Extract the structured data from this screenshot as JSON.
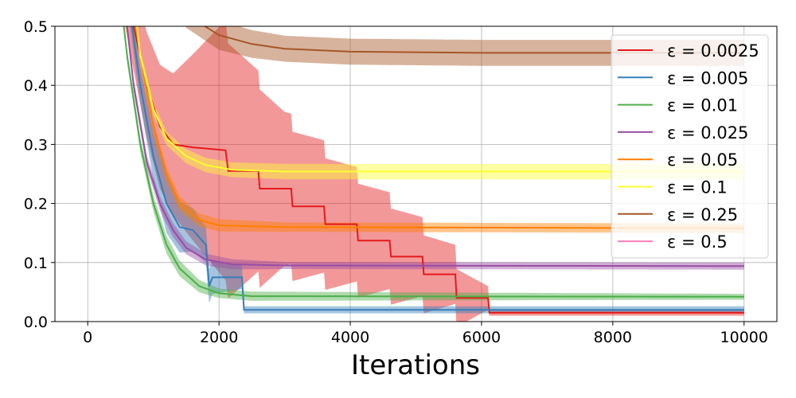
{
  "chart_data": {
    "type": "line",
    "title": "",
    "xlabel": "Iterations",
    "ylabel": "",
    "xlim": [
      -500,
      10500
    ],
    "ylim": [
      0,
      0.5
    ],
    "x_ticks": [
      0,
      2000,
      4000,
      6000,
      8000,
      10000
    ],
    "x_tick_labels": [
      "0",
      "2000",
      "4000",
      "6000",
      "8000",
      "10000"
    ],
    "y_ticks": [
      0.0,
      0.1,
      0.2,
      0.3,
      0.4,
      0.5
    ],
    "y_tick_labels": [
      "0.0",
      "0.1",
      "0.2",
      "0.3",
      "0.4",
      "0.5"
    ],
    "grid": true,
    "legend_position": "top-right",
    "series": [
      {
        "name": "ε = 0.0025",
        "color": "#e41a1c",
        "mean": [
          [
            500,
            0.6
          ],
          [
            700,
            0.5
          ],
          [
            900,
            0.4
          ],
          [
            1100,
            0.33
          ],
          [
            1300,
            0.3
          ],
          [
            1600,
            0.295
          ],
          [
            2100,
            0.29
          ],
          [
            2140,
            0.255
          ],
          [
            2600,
            0.255
          ],
          [
            2620,
            0.225
          ],
          [
            3100,
            0.225
          ],
          [
            3120,
            0.195
          ],
          [
            3600,
            0.195
          ],
          [
            3620,
            0.165
          ],
          [
            4100,
            0.165
          ],
          [
            4120,
            0.137
          ],
          [
            4600,
            0.137
          ],
          [
            4620,
            0.11
          ],
          [
            5100,
            0.11
          ],
          [
            5120,
            0.08
          ],
          [
            5600,
            0.08
          ],
          [
            5620,
            0.04
          ],
          [
            6100,
            0.04
          ],
          [
            6120,
            0.015
          ],
          [
            10000,
            0.015
          ]
        ],
        "band_half_width": [
          [
            500,
            0.06
          ],
          [
            1300,
            0.12
          ],
          [
            2100,
            0.22
          ],
          [
            3000,
            0.13
          ],
          [
            4000,
            0.1
          ],
          [
            5000,
            0.07
          ],
          [
            5600,
            0.05
          ],
          [
            6100,
            0.02
          ],
          [
            6120,
            0.005
          ],
          [
            10000,
            0.005
          ]
        ]
      },
      {
        "name": "ε = 0.005",
        "color": "#377eb8",
        "mean": [
          [
            550,
            0.6
          ],
          [
            800,
            0.4
          ],
          [
            1000,
            0.28
          ],
          [
            1200,
            0.2
          ],
          [
            1400,
            0.16
          ],
          [
            1600,
            0.155
          ],
          [
            1800,
            0.13
          ],
          [
            1850,
            0.06
          ],
          [
            1900,
            0.075
          ],
          [
            2350,
            0.075
          ],
          [
            2380,
            0.02
          ],
          [
            10000,
            0.02
          ]
        ],
        "band_half_width": [
          [
            550,
            0.02
          ],
          [
            1200,
            0.05
          ],
          [
            1800,
            0.03
          ],
          [
            2350,
            0.02
          ],
          [
            2380,
            0.006
          ],
          [
            10000,
            0.006
          ]
        ]
      },
      {
        "name": "ε = 0.01",
        "color": "#4daf4a",
        "mean": [
          [
            450,
            0.6
          ],
          [
            600,
            0.45
          ],
          [
            800,
            0.3
          ],
          [
            1000,
            0.2
          ],
          [
            1200,
            0.13
          ],
          [
            1400,
            0.09
          ],
          [
            1700,
            0.06
          ],
          [
            2000,
            0.048
          ],
          [
            2500,
            0.043
          ],
          [
            10000,
            0.042
          ]
        ],
        "band_half_width": [
          [
            450,
            0.01
          ],
          [
            1200,
            0.015
          ],
          [
            2000,
            0.008
          ],
          [
            10000,
            0.005
          ]
        ]
      },
      {
        "name": "ε = 0.025",
        "color": "#984ea3",
        "mean": [
          [
            500,
            0.6
          ],
          [
            700,
            0.4
          ],
          [
            900,
            0.27
          ],
          [
            1100,
            0.2
          ],
          [
            1300,
            0.155
          ],
          [
            1500,
            0.125
          ],
          [
            1800,
            0.105
          ],
          [
            2200,
            0.097
          ],
          [
            3000,
            0.095
          ],
          [
            10000,
            0.094
          ]
        ],
        "band_half_width": [
          [
            500,
            0.01
          ],
          [
            1200,
            0.012
          ],
          [
            3000,
            0.006
          ],
          [
            10000,
            0.006
          ]
        ]
      },
      {
        "name": "ε = 0.05",
        "color": "#ff7f00",
        "mean": [
          [
            600,
            0.6
          ],
          [
            800,
            0.45
          ],
          [
            1000,
            0.33
          ],
          [
            1200,
            0.25
          ],
          [
            1400,
            0.2
          ],
          [
            1700,
            0.172
          ],
          [
            2000,
            0.163
          ],
          [
            3000,
            0.16
          ],
          [
            10000,
            0.158
          ]
        ],
        "band_half_width": [
          [
            600,
            0.01
          ],
          [
            1400,
            0.012
          ],
          [
            3000,
            0.008
          ],
          [
            10000,
            0.008
          ]
        ]
      },
      {
        "name": "ε = 0.1",
        "color": "#ffff33",
        "mean": [
          [
            650,
            0.6
          ],
          [
            800,
            0.45
          ],
          [
            1000,
            0.36
          ],
          [
            1200,
            0.31
          ],
          [
            1500,
            0.28
          ],
          [
            1800,
            0.265
          ],
          [
            2200,
            0.257
          ],
          [
            3000,
            0.254
          ],
          [
            10000,
            0.254
          ]
        ],
        "band_half_width": [
          [
            650,
            0.01
          ],
          [
            1500,
            0.012
          ],
          [
            3000,
            0.013
          ],
          [
            10000,
            0.013
          ]
        ]
      },
      {
        "name": "ε = 0.25",
        "color": "#a65628",
        "mean": [
          [
            1000,
            0.6
          ],
          [
            1500,
            0.52
          ],
          [
            2000,
            0.485
          ],
          [
            2500,
            0.47
          ],
          [
            3000,
            0.462
          ],
          [
            4000,
            0.457
          ],
          [
            6000,
            0.455
          ],
          [
            10000,
            0.455
          ]
        ],
        "band_half_width": [
          [
            1000,
            0.02
          ],
          [
            2000,
            0.025
          ],
          [
            3000,
            0.022
          ],
          [
            10000,
            0.022
          ]
        ]
      },
      {
        "name": "ε = 0.5",
        "color": "#f781bf",
        "mean": [],
        "band_half_width": []
      }
    ]
  }
}
